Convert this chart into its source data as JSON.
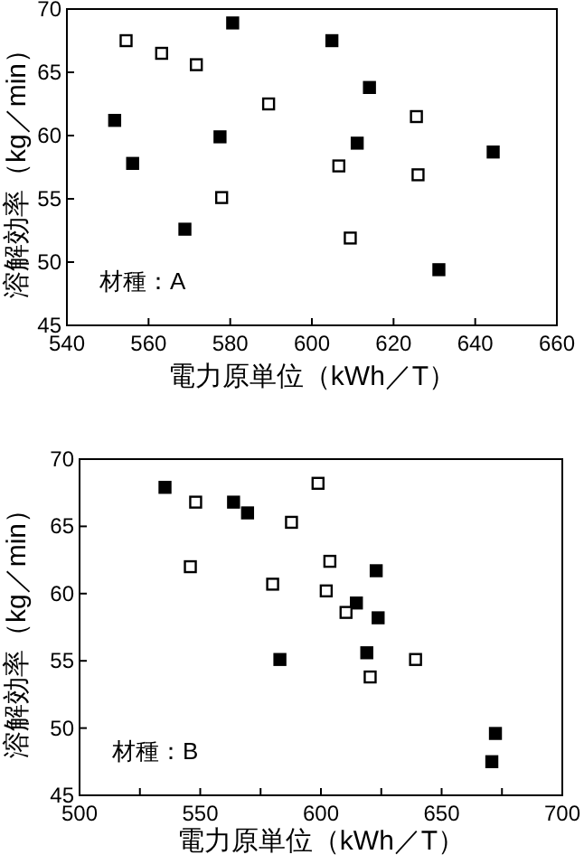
{
  "chart_data": [
    {
      "type": "scatter",
      "xlabel": "電力原単位（kWh／T）",
      "ylabel": "溶解効率（kg／min）",
      "annotations": [
        "材種：A"
      ],
      "xlim": [
        540,
        660
      ],
      "xticks": [
        540,
        560,
        580,
        600,
        620,
        640,
        660
      ],
      "ylim": [
        45,
        70
      ],
      "yticks": [
        45,
        50,
        55,
        60,
        65,
        70
      ],
      "marker": "square",
      "grid": false,
      "series": [
        {
          "color": "#000000",
          "x": [
            551.7,
            556.1,
            568.9,
            577.5,
            580.6,
            604.9,
            611.1,
            614.1,
            631.1,
            644.4
          ],
          "values": [
            61.2,
            57.8,
            52.6,
            59.9,
            68.9,
            67.5,
            59.4,
            63.8,
            49.4,
            58.7
          ]
        },
        {
          "color": "#ffffff",
          "x": [
            554.5,
            563.2,
            571.7,
            577.9,
            589.4,
            606.6,
            609.4,
            625.6,
            626.0
          ],
          "values": [
            67.5,
            66.5,
            65.6,
            55.1,
            62.5,
            57.6,
            51.9,
            61.5,
            56.9
          ]
        }
      ]
    },
    {
      "type": "scatter",
      "xlabel": "電力原単位（kWh／T）",
      "ylabel": "溶解効率（kg／min）",
      "annotations": [
        "材種：B"
      ],
      "xlim": [
        500,
        700
      ],
      "xticks": [
        500,
        {
          "value": 525,
          "label": null
        },
        550,
        {
          "value": 575,
          "label": null
        },
        600,
        {
          "value": 625,
          "label": null
        },
        650,
        {
          "value": 675,
          "label": null
        },
        700
      ],
      "ylim": [
        45,
        70
      ],
      "yticks": [
        45,
        50,
        55,
        60,
        65,
        70
      ],
      "marker": "square",
      "grid": false,
      "series": [
        {
          "color": "#000000",
          "x": [
            535.4,
            563.8,
            569.6,
            583.0,
            614.7,
            619.0,
            622.9,
            623.7,
            672.3,
            670.8
          ],
          "values": [
            67.9,
            66.8,
            66.0,
            55.1,
            59.3,
            55.6,
            61.7,
            58.2,
            49.6,
            47.5
          ]
        },
        {
          "color": "#ffffff",
          "x": [
            548.1,
            545.9,
            580.0,
            587.8,
            598.8,
            602.2,
            603.7,
            610.4,
            620.4,
            639.2
          ],
          "values": [
            66.8,
            62.0,
            60.7,
            65.3,
            68.2,
            60.2,
            62.4,
            58.6,
            53.8,
            55.1
          ]
        }
      ]
    }
  ]
}
